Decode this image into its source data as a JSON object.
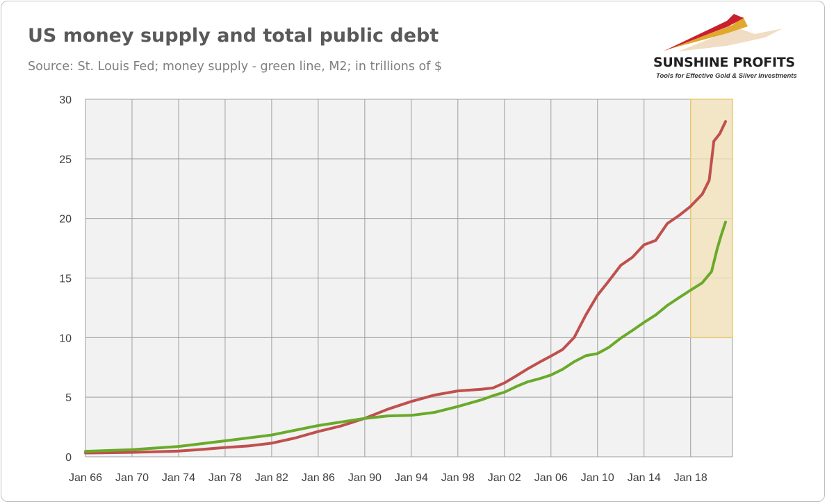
{
  "page": {
    "title": "US money supply and total public debt",
    "subtitle": "Source: St. Louis Fed; money supply - green line, M2; in trillions of $"
  },
  "logo": {
    "name": "SUNSHINE PROFITS",
    "tagline": "Tools for Effective Gold & Silver Investments",
    "colors": {
      "red": "#c8202f",
      "gold": "#e0a82e",
      "pale": "#f1ddc3"
    }
  },
  "chart_data": {
    "type": "line",
    "title": "US money supply and total public debt",
    "subtitle": "Source: St. Louis Fed; money supply - green line, M2; in trillions of $",
    "xlabel": "",
    "ylabel": "",
    "xlim": [
      1966.0,
      2021.6
    ],
    "ylim": [
      0,
      30
    ],
    "yticks": [
      0,
      5,
      10,
      15,
      20,
      25,
      30
    ],
    "xtick_labels": [
      "Jan 66",
      "Jan 70",
      "Jan 74",
      "Jan 78",
      "Jan 82",
      "Jan 86",
      "Jan 90",
      "Jan 94",
      "Jan 98",
      "Jan 02",
      "Jan 06",
      "Jan 10",
      "Jan 14",
      "Jan 18"
    ],
    "xtick_years": [
      1966,
      1970,
      1974,
      1978,
      1982,
      1986,
      1990,
      1994,
      1998,
      2002,
      2006,
      2010,
      2014,
      2018
    ],
    "grid": true,
    "plot_background": "#f2f2f2",
    "highlight": {
      "x": [
        2018.0,
        2021.0
      ],
      "y": [
        10,
        30
      ],
      "fill": "#f2e2b8",
      "stroke": "#e8c872"
    },
    "series": [
      {
        "color": "#c0504d",
        "points": [
          [
            1966.0,
            0.32
          ],
          [
            1970.0,
            0.37
          ],
          [
            1974.0,
            0.48
          ],
          [
            1976.0,
            0.62
          ],
          [
            1978.0,
            0.78
          ],
          [
            1980.0,
            0.91
          ],
          [
            1982.0,
            1.14
          ],
          [
            1984.0,
            1.57
          ],
          [
            1986.0,
            2.12
          ],
          [
            1988.0,
            2.6
          ],
          [
            1990.0,
            3.23
          ],
          [
            1992.0,
            4.0
          ],
          [
            1994.0,
            4.64
          ],
          [
            1996.0,
            5.18
          ],
          [
            1998.0,
            5.53
          ],
          [
            2000.0,
            5.67
          ],
          [
            2001.0,
            5.77
          ],
          [
            2002.0,
            6.2
          ],
          [
            2003.0,
            6.78
          ],
          [
            2004.0,
            7.38
          ],
          [
            2005.0,
            7.93
          ],
          [
            2006.0,
            8.45
          ],
          [
            2007.0,
            9.0
          ],
          [
            2008.0,
            10.02
          ],
          [
            2009.0,
            11.9
          ],
          [
            2010.0,
            13.56
          ],
          [
            2011.0,
            14.79
          ],
          [
            2012.0,
            16.07
          ],
          [
            2013.0,
            16.74
          ],
          [
            2014.0,
            17.79
          ],
          [
            2015.0,
            18.15
          ],
          [
            2016.0,
            19.57
          ],
          [
            2017.0,
            20.24
          ],
          [
            2018.0,
            21.01
          ],
          [
            2019.0,
            22.03
          ],
          [
            2019.6,
            23.2
          ],
          [
            2020.0,
            26.48
          ],
          [
            2020.5,
            27.1
          ],
          [
            2021.0,
            28.13
          ]
        ]
      },
      {
        "color": "#6aaa2a",
        "points": [
          [
            1966.0,
            0.46
          ],
          [
            1970.0,
            0.6
          ],
          [
            1974.0,
            0.87
          ],
          [
            1978.0,
            1.34
          ],
          [
            1982.0,
            1.83
          ],
          [
            1986.0,
            2.62
          ],
          [
            1990.0,
            3.22
          ],
          [
            1992.0,
            3.43
          ],
          [
            1994.0,
            3.48
          ],
          [
            1996.0,
            3.73
          ],
          [
            1998.0,
            4.22
          ],
          [
            2000.0,
            4.77
          ],
          [
            2001.0,
            5.12
          ],
          [
            2002.0,
            5.42
          ],
          [
            2003.0,
            5.89
          ],
          [
            2004.0,
            6.29
          ],
          [
            2005.0,
            6.55
          ],
          [
            2006.0,
            6.86
          ],
          [
            2007.0,
            7.34
          ],
          [
            2008.0,
            7.98
          ],
          [
            2009.0,
            8.48
          ],
          [
            2010.0,
            8.66
          ],
          [
            2011.0,
            9.2
          ],
          [
            2012.0,
            9.96
          ],
          [
            2013.0,
            10.6
          ],
          [
            2014.0,
            11.28
          ],
          [
            2015.0,
            11.9
          ],
          [
            2016.0,
            12.7
          ],
          [
            2017.0,
            13.35
          ],
          [
            2018.0,
            13.98
          ],
          [
            2019.0,
            14.6
          ],
          [
            2019.8,
            15.55
          ],
          [
            2020.3,
            17.5
          ],
          [
            2020.6,
            18.5
          ],
          [
            2021.0,
            19.7
          ]
        ]
      }
    ]
  }
}
